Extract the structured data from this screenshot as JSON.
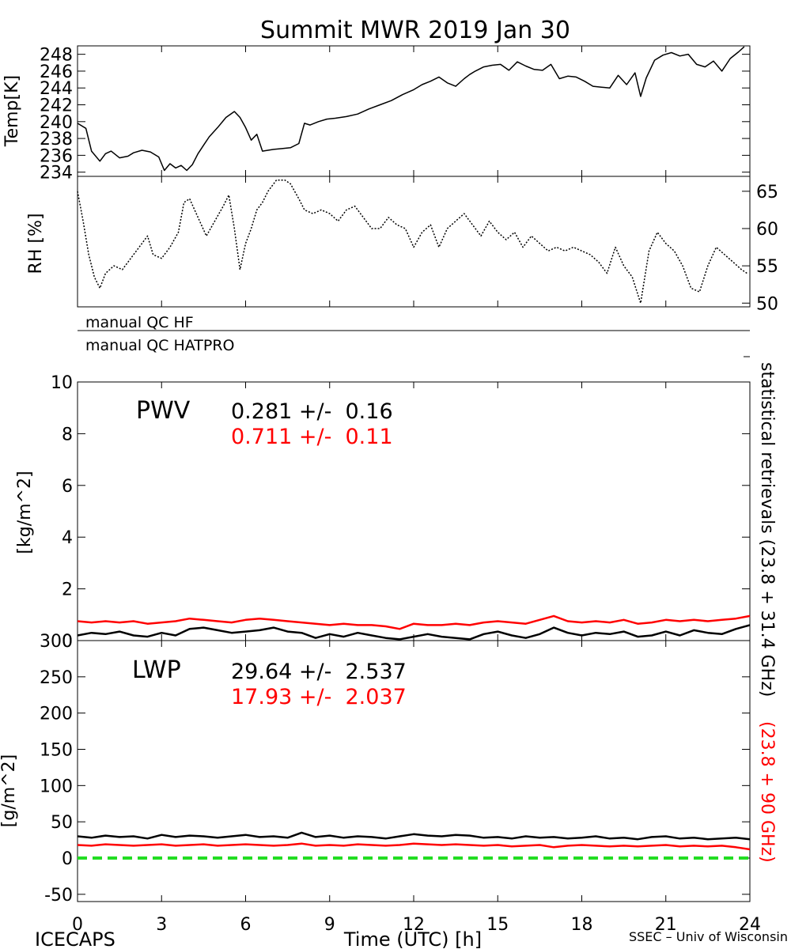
{
  "page": {
    "title": "Summit MWR 2019 Jan 30"
  },
  "footer": {
    "left": "ICECAPS",
    "center": "Time (UTC) [h]",
    "right": "SSEC – Univ of Wisconsin"
  },
  "qc": {
    "line1": "manual QC HF",
    "line2": "manual QC HATPRO"
  },
  "right_labels": {
    "black": "statistical retrievals (23.8 + 31.4 GHz)",
    "red": "(23.8 + 90 GHz)"
  },
  "colors": {
    "black": "#000000",
    "red": "#ff0000",
    "green": "#22dd22"
  },
  "chart_data": [
    {
      "type": "line",
      "panel": "temp",
      "ylabel": "Temp[K]",
      "ylim": [
        233.5,
        249
      ],
      "yticks": [
        "234",
        "236",
        "238",
        "240",
        "242",
        "244",
        "246",
        "248"
      ],
      "xlim": [
        0,
        24
      ],
      "series": [
        {
          "color": "#000000",
          "x": [
            0,
            0.3,
            0.5,
            0.8,
            1.0,
            1.2,
            1.5,
            1.8,
            2.0,
            2.3,
            2.6,
            2.9,
            3.1,
            3.3,
            3.5,
            3.7,
            3.9,
            4.1,
            4.3,
            4.5,
            4.7,
            5.0,
            5.3,
            5.6,
            5.8,
            6.0,
            6.2,
            6.4,
            6.6,
            6.8,
            7.0,
            7.3,
            7.6,
            7.9,
            8.1,
            8.3,
            8.6,
            8.9,
            9.2,
            9.6,
            10.0,
            10.4,
            10.8,
            11.2,
            11.6,
            12.0,
            12.3,
            12.6,
            12.9,
            13.2,
            13.5,
            13.8,
            14.0,
            14.2,
            14.5,
            14.8,
            15.1,
            15.4,
            15.7,
            16.0,
            16.3,
            16.6,
            16.9,
            17.2,
            17.5,
            17.8,
            18.1,
            18.4,
            18.7,
            19.0,
            19.3,
            19.6,
            19.9,
            20.1,
            20.3,
            20.6,
            20.9,
            21.2,
            21.5,
            21.8,
            22.1,
            22.4,
            22.7,
            23.0,
            23.3,
            23.6,
            23.8
          ],
          "y": [
            239.8,
            239.2,
            236.5,
            235.3,
            236.2,
            236.5,
            235.7,
            235.9,
            236.3,
            236.6,
            236.4,
            235.8,
            234.2,
            235.0,
            234.5,
            234.8,
            234.2,
            234.9,
            236.2,
            237.2,
            238.2,
            239.3,
            240.5,
            241.2,
            240.5,
            239.3,
            237.8,
            238.5,
            236.5,
            236.6,
            236.7,
            236.8,
            236.9,
            237.4,
            239.8,
            239.6,
            240.0,
            240.3,
            240.4,
            240.6,
            240.9,
            241.5,
            242.0,
            242.5,
            243.2,
            243.8,
            244.4,
            244.8,
            245.3,
            244.6,
            244.2,
            245.1,
            245.6,
            246.0,
            246.5,
            246.7,
            246.8,
            246.1,
            247.1,
            246.6,
            246.2,
            246.1,
            246.8,
            245.1,
            245.4,
            245.3,
            244.8,
            244.2,
            244.1,
            244.0,
            245.5,
            244.4,
            245.8,
            243.0,
            245.2,
            247.3,
            247.9,
            248.2,
            247.8,
            248.0,
            246.8,
            246.5,
            247.2,
            246.0,
            247.5,
            248.3,
            248.9
          ]
        }
      ]
    },
    {
      "type": "line",
      "panel": "rh",
      "ylabel": "RH [%]",
      "ylim": [
        49.5,
        67
      ],
      "yticks": [
        "50",
        "55",
        "60",
        "65"
      ],
      "xlim": [
        0,
        24
      ],
      "series": [
        {
          "color": "#000000",
          "x": [
            0,
            0.2,
            0.4,
            0.6,
            0.8,
            1.0,
            1.3,
            1.6,
            1.9,
            2.2,
            2.5,
            2.7,
            3.0,
            3.3,
            3.6,
            3.8,
            4.0,
            4.3,
            4.6,
            4.9,
            5.2,
            5.4,
            5.6,
            5.8,
            6.0,
            6.2,
            6.4,
            6.6,
            6.8,
            7.1,
            7.4,
            7.6,
            7.9,
            8.1,
            8.4,
            8.7,
            9.0,
            9.3,
            9.6,
            9.9,
            10.2,
            10.5,
            10.8,
            11.1,
            11.4,
            11.7,
            12.0,
            12.3,
            12.6,
            12.9,
            13.2,
            13.5,
            13.8,
            14.1,
            14.4,
            14.7,
            15.0,
            15.3,
            15.6,
            15.9,
            16.2,
            16.5,
            16.8,
            17.1,
            17.4,
            17.7,
            18.0,
            18.3,
            18.6,
            18.9,
            19.2,
            19.5,
            19.8,
            20.1,
            20.4,
            20.7,
            21.0,
            21.3,
            21.6,
            21.9,
            22.2,
            22.5,
            22.8,
            23.1,
            23.4,
            23.7,
            23.9
          ],
          "y": [
            65.0,
            61.0,
            56.5,
            53.5,
            52.0,
            54.0,
            55.0,
            54.5,
            56.0,
            57.5,
            59.0,
            56.5,
            56.0,
            57.5,
            59.5,
            63.5,
            64.0,
            61.5,
            59.0,
            61.0,
            63.0,
            64.5,
            60.0,
            54.5,
            58.0,
            60.0,
            62.5,
            63.5,
            65.0,
            66.5,
            66.5,
            66.0,
            64.0,
            62.5,
            62.0,
            62.5,
            62.0,
            61.0,
            62.5,
            63.0,
            61.5,
            60.0,
            60.0,
            61.5,
            60.5,
            60.0,
            57.5,
            59.5,
            60.5,
            57.5,
            60.0,
            61.0,
            62.0,
            60.5,
            59.0,
            61.0,
            59.5,
            58.5,
            59.5,
            57.5,
            59.0,
            58.0,
            57.0,
            57.5,
            57.0,
            57.5,
            57.0,
            56.5,
            55.5,
            54.0,
            57.5,
            55.0,
            53.5,
            50.0,
            57.0,
            59.5,
            58.0,
            57.0,
            55.0,
            52.0,
            51.5,
            55.0,
            57.5,
            56.5,
            55.5,
            54.5,
            54.0
          ]
        }
      ]
    },
    {
      "type": "line",
      "panel": "pwv",
      "ylabel": "[kg/m^2]",
      "ylim": [
        0,
        10
      ],
      "yticks": [
        "0",
        "2",
        "4",
        "6",
        "8",
        "10"
      ],
      "xlim": [
        0,
        24
      ],
      "annotation": {
        "label": "PWV",
        "black_text": "0.281 +/-  0.16",
        "red_text": "0.711 +/-  0.11"
      },
      "series": [
        {
          "color": "#000000",
          "x": [
            0,
            0.5,
            1.0,
            1.5,
            2.0,
            2.5,
            3.0,
            3.5,
            4.0,
            4.5,
            5.0,
            5.5,
            6.0,
            6.5,
            7.0,
            7.5,
            8.0,
            8.5,
            9.0,
            9.5,
            10.0,
            10.5,
            11.0,
            11.5,
            12.0,
            12.5,
            13.0,
            13.5,
            14.0,
            14.5,
            15.0,
            15.5,
            16.0,
            16.5,
            17.0,
            17.5,
            18.0,
            18.5,
            19.0,
            19.5,
            20.0,
            20.5,
            21.0,
            21.5,
            22.0,
            22.5,
            23.0,
            23.5,
            24.0
          ],
          "y": [
            0.2,
            0.3,
            0.25,
            0.35,
            0.2,
            0.15,
            0.3,
            0.2,
            0.45,
            0.5,
            0.4,
            0.3,
            0.35,
            0.4,
            0.5,
            0.35,
            0.3,
            0.1,
            0.25,
            0.15,
            0.3,
            0.2,
            0.1,
            0.05,
            0.15,
            0.25,
            0.15,
            0.1,
            0.05,
            0.25,
            0.35,
            0.2,
            0.1,
            0.25,
            0.5,
            0.3,
            0.2,
            0.3,
            0.25,
            0.35,
            0.15,
            0.2,
            0.35,
            0.2,
            0.4,
            0.3,
            0.25,
            0.45,
            0.6
          ]
        },
        {
          "color": "#ff0000",
          "x": [
            0,
            0.5,
            1.0,
            1.5,
            2.0,
            2.5,
            3.0,
            3.5,
            4.0,
            4.5,
            5.0,
            5.5,
            6.0,
            6.5,
            7.0,
            7.5,
            8.0,
            8.5,
            9.0,
            9.5,
            10.0,
            10.5,
            11.0,
            11.5,
            12.0,
            12.5,
            13.0,
            13.5,
            14.0,
            14.5,
            15.0,
            15.5,
            16.0,
            16.5,
            17.0,
            17.5,
            18.0,
            18.5,
            19.0,
            19.5,
            20.0,
            20.5,
            21.0,
            21.5,
            22.0,
            22.5,
            23.0,
            23.5,
            24.0
          ],
          "y": [
            0.75,
            0.7,
            0.75,
            0.7,
            0.75,
            0.65,
            0.7,
            0.75,
            0.85,
            0.8,
            0.75,
            0.7,
            0.8,
            0.85,
            0.8,
            0.75,
            0.7,
            0.65,
            0.6,
            0.65,
            0.6,
            0.6,
            0.55,
            0.45,
            0.65,
            0.6,
            0.6,
            0.65,
            0.6,
            0.7,
            0.75,
            0.7,
            0.65,
            0.8,
            0.95,
            0.75,
            0.7,
            0.75,
            0.7,
            0.8,
            0.65,
            0.7,
            0.8,
            0.75,
            0.8,
            0.75,
            0.8,
            0.85,
            0.95
          ]
        }
      ]
    },
    {
      "type": "line",
      "panel": "lwp",
      "ylabel": "[g/m^2]",
      "ylim": [
        -60,
        300
      ],
      "yticks": [
        "-50",
        "0",
        "50",
        "100",
        "150",
        "200",
        "250",
        "300"
      ],
      "xlim": [
        0,
        24
      ],
      "annotation": {
        "label": "LWP",
        "black_text": "29.64 +/-  2.537",
        "red_text": "17.93 +/-  2.037"
      },
      "series": [
        {
          "color": "#000000",
          "x": [
            0,
            0.5,
            1.0,
            1.5,
            2.0,
            2.5,
            3.0,
            3.5,
            4.0,
            4.5,
            5.0,
            5.5,
            6.0,
            6.5,
            7.0,
            7.5,
            8.0,
            8.5,
            9.0,
            9.5,
            10.0,
            10.5,
            11.0,
            11.5,
            12.0,
            12.5,
            13.0,
            13.5,
            14.0,
            14.5,
            15.0,
            15.5,
            16.0,
            16.5,
            17.0,
            17.5,
            18.0,
            18.5,
            19.0,
            19.5,
            20.0,
            20.5,
            21.0,
            21.5,
            22.0,
            22.5,
            23.0,
            23.5,
            24.0
          ],
          "y": [
            30,
            28,
            31,
            29,
            30,
            27,
            32,
            29,
            31,
            30,
            28,
            30,
            32,
            29,
            30,
            28,
            35,
            29,
            31,
            28,
            30,
            29,
            27,
            30,
            33,
            31,
            30,
            32,
            31,
            28,
            29,
            27,
            30,
            28,
            29,
            27,
            28,
            30,
            27,
            28,
            26,
            29,
            30,
            27,
            28,
            26,
            27,
            28,
            26
          ]
        },
        {
          "color": "#ff0000",
          "x": [
            0,
            0.5,
            1.0,
            1.5,
            2.0,
            2.5,
            3.0,
            3.5,
            4.0,
            4.5,
            5.0,
            5.5,
            6.0,
            6.5,
            7.0,
            7.5,
            8.0,
            8.5,
            9.0,
            9.5,
            10.0,
            10.5,
            11.0,
            11.5,
            12.0,
            12.5,
            13.0,
            13.5,
            14.0,
            14.5,
            15.0,
            15.5,
            16.0,
            16.5,
            17.0,
            17.5,
            18.0,
            18.5,
            19.0,
            19.5,
            20.0,
            20.5,
            21.0,
            21.5,
            22.0,
            22.5,
            23.0,
            23.5,
            24.0
          ],
          "y": [
            18,
            17,
            19,
            18,
            17,
            18,
            19,
            17,
            18,
            19,
            17,
            18,
            19,
            18,
            17,
            18,
            20,
            17,
            18,
            17,
            19,
            18,
            17,
            18,
            20,
            19,
            18,
            19,
            18,
            17,
            18,
            16,
            17,
            18,
            15,
            17,
            18,
            17,
            16,
            17,
            16,
            17,
            18,
            16,
            17,
            16,
            17,
            15,
            12
          ]
        },
        {
          "color": "#22dd22",
          "x": [
            0,
            24
          ],
          "y": [
            0,
            0
          ]
        }
      ]
    }
  ],
  "x_axis": {
    "ticks": [
      "0",
      "3",
      "6",
      "9",
      "12",
      "15",
      "18",
      "21",
      "24"
    ]
  }
}
